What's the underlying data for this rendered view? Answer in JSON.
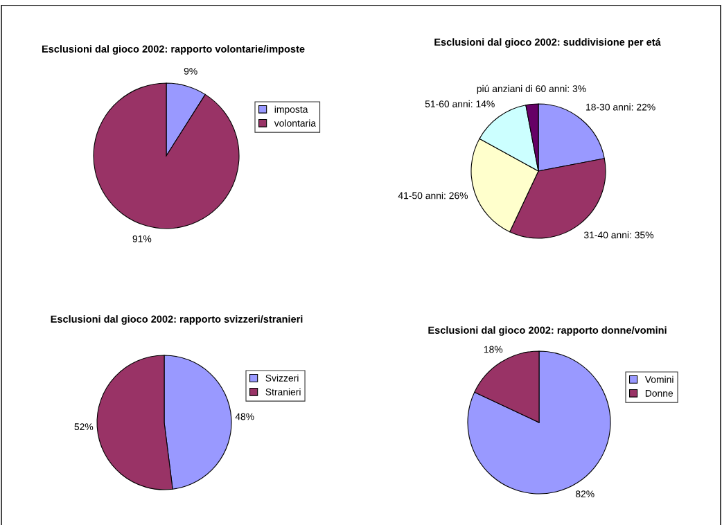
{
  "chart_data": [
    {
      "type": "pie",
      "title": "Esclusioni dal gioco 2002: rapporto volontarie/imposte",
      "categories": [
        "imposta",
        "volontaria"
      ],
      "values": [
        9,
        91
      ],
      "colors": [
        "#9999ff",
        "#993366"
      ],
      "value_labels": [
        "9%",
        "91%"
      ],
      "legend": "right"
    },
    {
      "type": "pie",
      "title": "Esclusioni dal gioco 2002: suddivisione per etá",
      "categories": [
        "18-30 anni",
        "31-40 anni",
        "41-50 anni",
        "51-60 anni",
        "piú anziani di 60 anni"
      ],
      "values": [
        22,
        35,
        26,
        14,
        3
      ],
      "colors": [
        "#9999ff",
        "#993366",
        "#ffffcc",
        "#ccffff",
        "#660066"
      ],
      "value_labels": [
        "22%",
        "35%",
        "26%",
        "14%",
        "3%"
      ]
    },
    {
      "type": "pie",
      "title": "Esclusioni dal gioco 2002: rapporto svizzeri/stranieri",
      "categories": [
        "Svizzeri",
        "Stranieri"
      ],
      "values": [
        48,
        52
      ],
      "colors": [
        "#9999ff",
        "#993366"
      ],
      "value_labels": [
        "48%",
        "52%"
      ],
      "legend": "top right"
    },
    {
      "type": "pie",
      "title": "Esclusioni dal gioco 2002: rapporto donne/vomini",
      "categories": [
        "Vomini",
        "Donne"
      ],
      "values": [
        82,
        18
      ],
      "colors": [
        "#9999ff",
        "#993366"
      ],
      "value_labels": [
        "82%",
        "18%"
      ],
      "legend": "top right"
    }
  ]
}
